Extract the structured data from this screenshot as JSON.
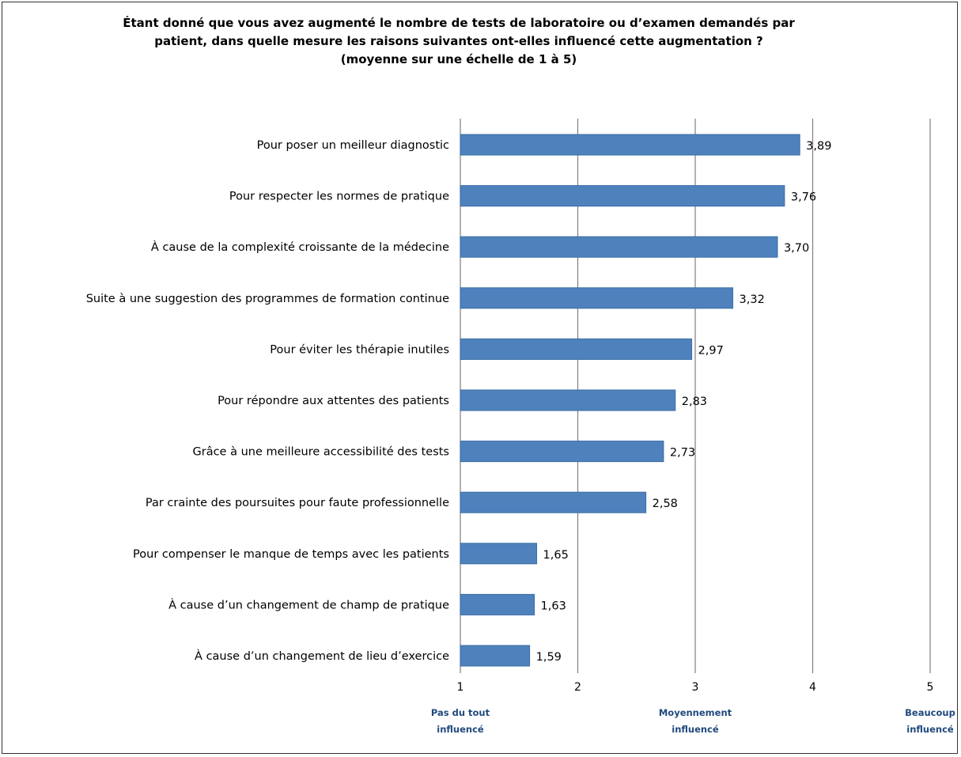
{
  "chart_data": {
    "type": "bar",
    "orientation": "horizontal",
    "title_lines": [
      "Étant donné que vous avez augmenté le nombre de tests de laboratoire ou d’examen demandés par",
      "patient, dans quelle mesure les raisons suivantes ont-elles influencé cette augmentation ?",
      "(moyenne sur une échelle de 1 à 5)"
    ],
    "categories": [
      "Pour poser un meilleur diagnostic",
      "Pour respecter les normes de pratique",
      "À cause de la complexité croissante de la médecine",
      "Suite à une suggestion des programmes de formation continue",
      "Pour éviter les thérapie inutiles",
      "Pour répondre aux attentes des patients",
      "Grâce à une meilleure accessibilité des tests",
      "Par crainte des poursuites pour faute professionnelle",
      "Pour compenser le manque de temps avec les patients",
      "À cause d’un changement de champ de pratique",
      "À cause d’un changement de lieu d’exercice"
    ],
    "values": [
      3.89,
      3.76,
      3.7,
      3.32,
      2.97,
      2.83,
      2.73,
      2.58,
      1.65,
      1.63,
      1.59
    ],
    "value_labels": [
      "3,89",
      "3,76",
      "3,70",
      "3,32",
      "2,97",
      "2,83",
      "2,73",
      "2,58",
      "1,65",
      "1,63",
      "1,59"
    ],
    "xlim": [
      1,
      5
    ],
    "x_ticks": [
      "1",
      "2",
      "3",
      "4",
      "5"
    ],
    "x_tick_descriptions": [
      {
        "at": 1,
        "lines": [
          "Pas du tout",
          "influencé"
        ]
      },
      {
        "at": 3,
        "lines": [
          "Moyennement",
          "influencé"
        ]
      },
      {
        "at": 5,
        "lines": [
          "Beaucoup",
          "influencé"
        ]
      }
    ],
    "grid": true,
    "legend": "none"
  },
  "colors": {
    "bar": "#4f81bd",
    "bar_edge": "#3a6ea5",
    "gridline": "#7f7f7f",
    "axis": "#7f7f7f",
    "description_text": "#1f497d"
  }
}
